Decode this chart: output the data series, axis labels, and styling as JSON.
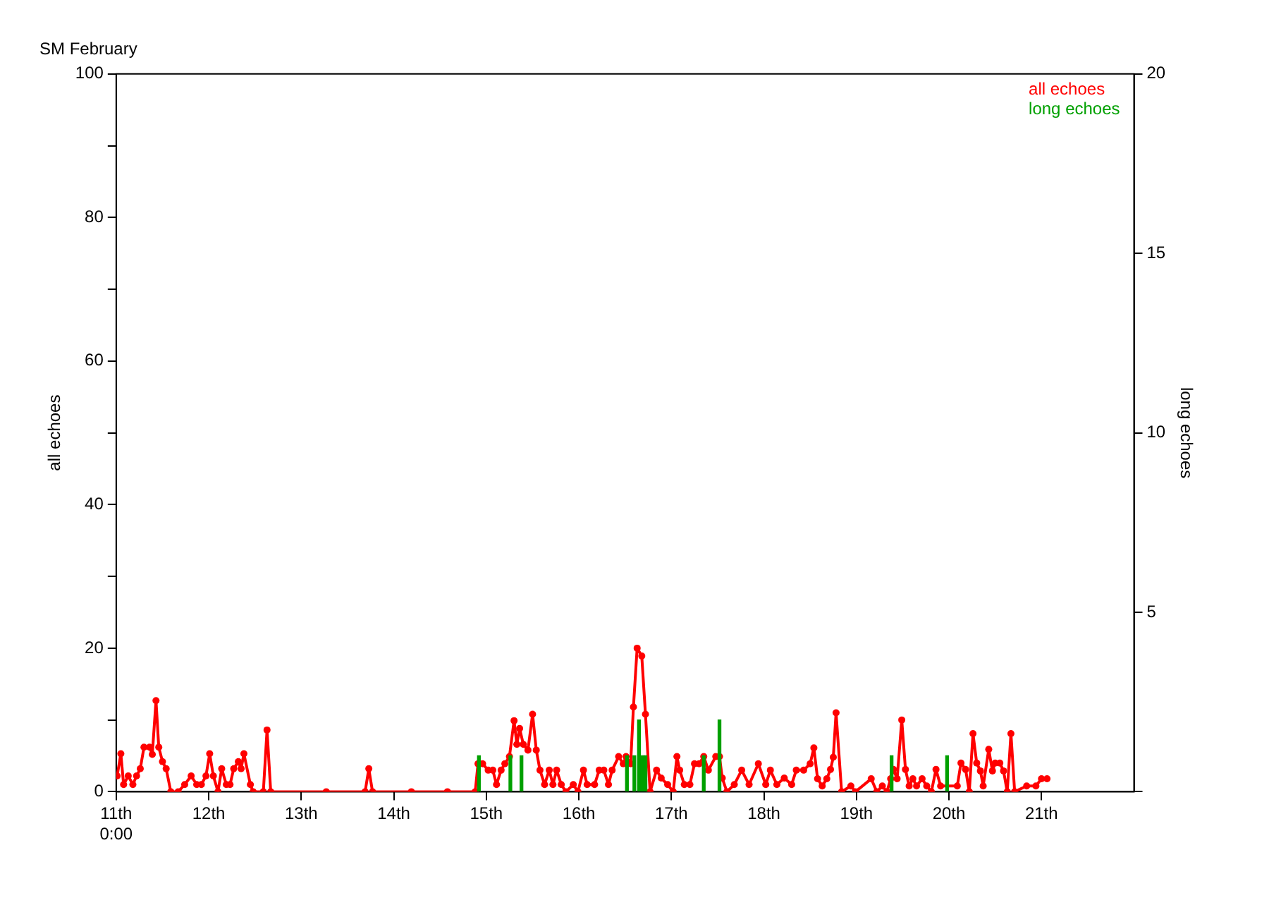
{
  "chart_data": {
    "type": "line",
    "title": "SM February",
    "ylabel": "all echoes",
    "y2label": "long echoes",
    "xlim": [
      11,
      22
    ],
    "xticks": [
      {
        "value": 11,
        "label": "11th\n0:00"
      },
      {
        "value": 12,
        "label": "12th"
      },
      {
        "value": 13,
        "label": "13th"
      },
      {
        "value": 14,
        "label": "14th"
      },
      {
        "value": 15,
        "label": "15th"
      },
      {
        "value": 16,
        "label": "16th"
      },
      {
        "value": 17,
        "label": "17th"
      },
      {
        "value": 18,
        "label": "18th"
      },
      {
        "value": 19,
        "label": "19th"
      },
      {
        "value": 20,
        "label": "20th"
      },
      {
        "value": 21,
        "label": "21th"
      }
    ],
    "ylim": [
      0,
      100
    ],
    "yticks": [
      0,
      {
        "value": 10,
        "label": null
      },
      20,
      {
        "value": 30,
        "label": null
      },
      40,
      {
        "value": 50,
        "label": null
      },
      60,
      {
        "value": 70,
        "label": null
      },
      80,
      {
        "value": 90,
        "label": null
      },
      100
    ],
    "y2lim": [
      0,
      20
    ],
    "y2ticks": [
      {
        "value": 0,
        "label": null
      },
      5,
      10,
      15,
      20
    ],
    "grid": false,
    "legend": "top right",
    "marker": "circle",
    "line_style": "solid",
    "series": [
      {
        "name": "all echoes",
        "color": "#ff0000",
        "x": [
          11.01,
          11.05,
          11.08,
          11.13,
          11.18,
          11.22,
          11.26,
          11.3,
          11.36,
          11.39,
          11.43,
          11.46,
          11.5,
          11.54,
          11.59,
          11.67,
          11.74,
          11.81,
          11.87,
          11.92,
          11.97,
          12.01,
          12.05,
          12.1,
          12.14,
          12.19,
          12.23,
          12.27,
          12.32,
          12.35,
          12.38,
          12.45,
          12.48,
          12.59,
          12.63,
          12.67,
          13.27,
          13.69,
          13.73,
          13.77,
          14.19,
          14.58,
          14.88,
          14.91,
          14.96,
          15.02,
          15.07,
          15.11,
          15.16,
          15.2,
          15.25,
          15.3,
          15.33,
          15.36,
          15.4,
          15.45,
          15.5,
          15.54,
          15.58,
          15.63,
          15.68,
          15.72,
          15.76,
          15.81,
          15.86,
          15.94,
          15.99,
          16.05,
          16.09,
          16.17,
          16.22,
          16.27,
          16.32,
          16.36,
          16.43,
          16.48,
          16.51,
          16.56,
          16.59,
          16.63,
          16.68,
          16.72,
          16.77,
          16.84,
          16.89,
          16.96,
          17.02,
          17.06,
          17.09,
          17.14,
          17.2,
          17.25,
          17.3,
          17.35,
          17.4,
          17.48,
          17.52,
          17.55,
          17.6,
          17.68,
          17.76,
          17.84,
          17.94,
          18.02,
          18.07,
          18.14,
          18.22,
          18.3,
          18.35,
          18.43,
          18.5,
          18.54,
          18.58,
          18.63,
          18.68,
          18.72,
          18.75,
          18.78,
          18.84,
          18.94,
          18.99,
          19.16,
          19.22,
          19.28,
          19.33,
          19.37,
          19.4,
          19.44,
          19.49,
          19.53,
          19.57,
          19.61,
          19.65,
          19.71,
          19.76,
          19.81,
          19.86,
          19.91,
          20.09,
          20.13,
          20.18,
          20.22,
          20.26,
          20.3,
          20.34,
          20.37,
          20.43,
          20.47,
          20.5,
          20.55,
          20.59,
          20.63,
          20.67,
          20.71,
          20.84,
          20.94,
          21,
          21.06
        ],
        "values": [
          2.2,
          5.3,
          1,
          2.2,
          1,
          2.2,
          3.2,
          6.2,
          6.2,
          5.2,
          12.7,
          6.2,
          4.2,
          3.2,
          0,
          0,
          1,
          2.2,
          1,
          1,
          2.2,
          5.3,
          2.2,
          0,
          3.2,
          1,
          1,
          3.2,
          4.2,
          3.2,
          5.3,
          1,
          0,
          0,
          8.6,
          0,
          0,
          0,
          3.2,
          0,
          0,
          0,
          0,
          3.9,
          3.9,
          3,
          3,
          1,
          3,
          3.9,
          4.9,
          9.9,
          6.6,
          8.8,
          6.6,
          5.8,
          10.8,
          5.8,
          3,
          1,
          3,
          1,
          3,
          1,
          0,
          1,
          0,
          3,
          1,
          1,
          3,
          3,
          1,
          3,
          4.9,
          3.9,
          4.9,
          3.9,
          11.8,
          20,
          18.9,
          10.8,
          0,
          3,
          1.9,
          1,
          0,
          4.9,
          3,
          1,
          1,
          3.9,
          3.9,
          4.9,
          3,
          4.9,
          4.9,
          1.9,
          0,
          1,
          3,
          1,
          3.9,
          1,
          3,
          1,
          1.9,
          1,
          3,
          3,
          3.9,
          6.1,
          1.8,
          0.8,
          1.8,
          3.1,
          4.8,
          11,
          0,
          0.8,
          0,
          1.8,
          0,
          0.8,
          0,
          1.8,
          3.1,
          1.8,
          10,
          3.1,
          0.8,
          1.8,
          0.8,
          1.8,
          0.8,
          0,
          3.1,
          0.8,
          0.8,
          4,
          3.1,
          0,
          8.1,
          4,
          2.9,
          0.8,
          5.9,
          2.9,
          4,
          4,
          2.9,
          0,
          8.1,
          0,
          0.8,
          0.8,
          1.8,
          1.8
        ]
      },
      {
        "name": "long echoes",
        "color": "#00a000",
        "type": "bar",
        "axis": "y2",
        "x": [
          14.92,
          15.26,
          15.38,
          16.52,
          16.6,
          16.65,
          16.69,
          16.72,
          17.35,
          17.52,
          19.38,
          19.98
        ],
        "values": [
          1,
          1,
          1,
          1,
          1,
          2,
          1,
          1,
          1,
          2,
          1,
          1
        ]
      }
    ]
  }
}
